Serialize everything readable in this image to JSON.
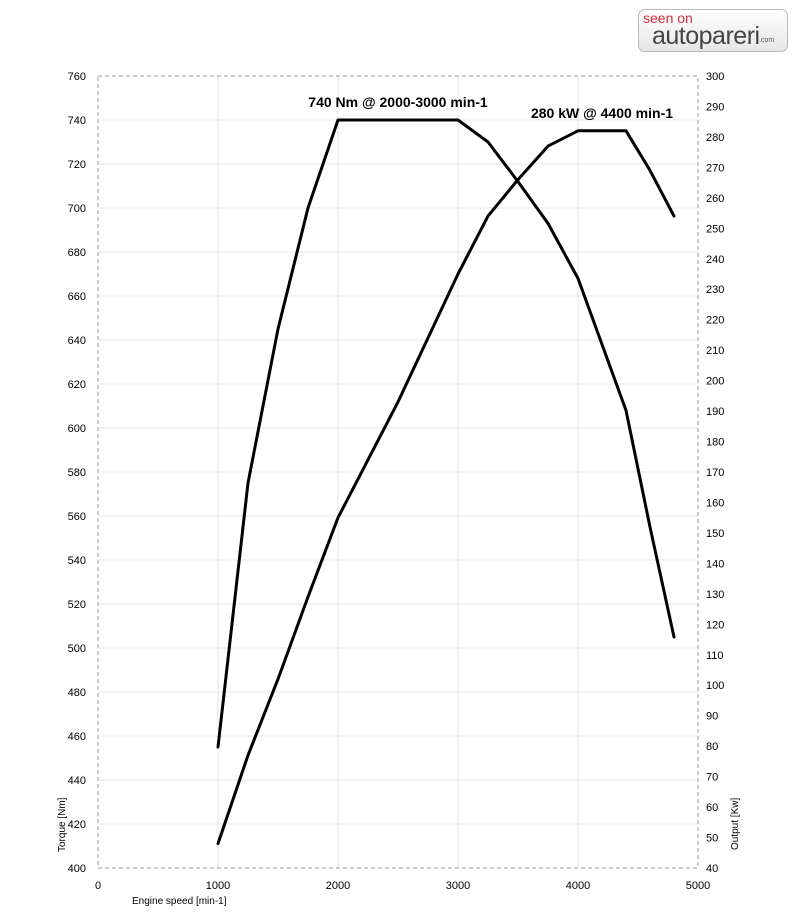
{
  "watermark": {
    "top_text": "seen on",
    "main_text": "autopareri",
    "tld_text": ".com",
    "accent_color": "#d0303a"
  },
  "chart_data": {
    "type": "line",
    "title": "",
    "xlabel": "Engine speed [min-1]",
    "ylabel_left": "Torque [Nm]",
    "ylabel_right": "Output [Kw]",
    "xlim": [
      0,
      5000
    ],
    "x_ticks": [
      "0",
      "1000",
      "2000",
      "3000",
      "4000",
      "5000"
    ],
    "ylim_left": [
      400,
      760
    ],
    "y_ticks_left": [
      "400",
      "420",
      "440",
      "460",
      "480",
      "500",
      "520",
      "540",
      "560",
      "580",
      "600",
      "620",
      "640",
      "660",
      "680",
      "700",
      "720",
      "740",
      "760"
    ],
    "ylim_right": [
      40,
      300
    ],
    "y_ticks_right": [
      "40",
      "50",
      "60",
      "70",
      "80",
      "90",
      "100",
      "110",
      "120",
      "130",
      "140",
      "150",
      "160",
      "170",
      "180",
      "190",
      "200",
      "210",
      "220",
      "230",
      "240",
      "250",
      "260",
      "270",
      "280",
      "290",
      "300"
    ],
    "grid": true,
    "series": [
      {
        "axis": "left",
        "x": [
          1000,
          1250,
          1500,
          1750,
          2000,
          2500,
          3000,
          3250,
          3500,
          3750,
          4000,
          4200,
          4400,
          4600,
          4800
        ],
        "values": [
          455,
          575,
          645,
          700,
          740,
          740,
          740,
          730,
          712,
          693,
          668,
          638,
          608,
          555,
          505
        ]
      },
      {
        "axis": "right",
        "x": [
          1000,
          1250,
          1500,
          1750,
          2000,
          2500,
          3000,
          3250,
          3500,
          3750,
          4000,
          4200,
          4400,
          4600,
          4800
        ],
        "values": [
          48,
          77,
          102,
          129,
          155,
          193,
          235,
          254,
          266,
          277,
          282,
          282,
          282,
          269,
          254
        ]
      }
    ],
    "annotations": [
      {
        "text": "740 Nm @ 2000-3000 min-1",
        "x": 2500,
        "y": 740,
        "axis": "left"
      },
      {
        "text": "280 kW @ 4400 min-1",
        "x": 4200,
        "y": 282,
        "axis": "right"
      }
    ]
  }
}
